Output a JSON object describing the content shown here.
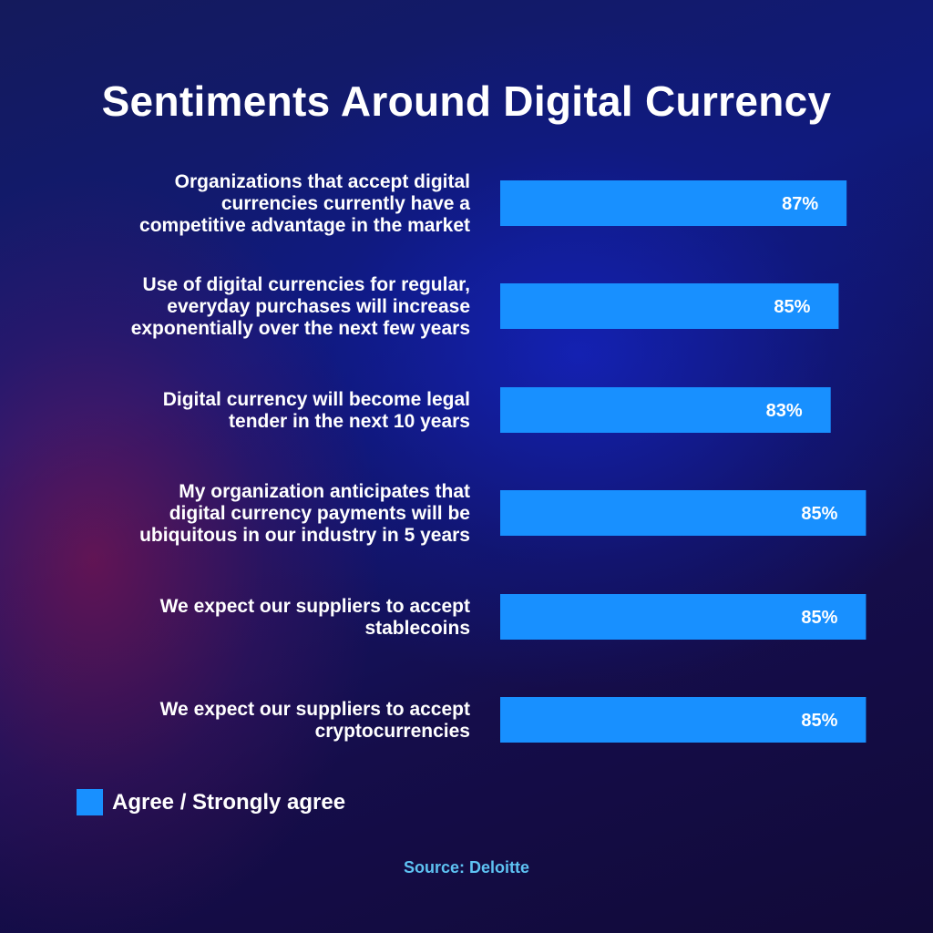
{
  "chart_data": {
    "type": "bar",
    "orientation": "horizontal",
    "title": "Sentiments Around Digital Currency",
    "categories": [
      [
        "Organizations that accept digital",
        "currencies currently have a",
        "competitive advantage in the market"
      ],
      [
        "Use of digital currencies for regular,",
        "everyday purchases will increase",
        "exponentially over the next few years"
      ],
      [
        "Digital currency will become legal",
        "tender in the next 10 years"
      ],
      [
        "My organization anticipates that",
        "digital currency payments will be",
        "ubiquitous in our industry in 5 years"
      ],
      [
        "We expect our suppliers to accept",
        "stablecoins"
      ],
      [
        "We expect our suppliers to accept",
        "cryptocurrencies"
      ]
    ],
    "series": [
      {
        "name": "Agree / Strongly agree",
        "values": [
          87,
          85,
          83,
          85,
          85,
          85
        ],
        "labels": [
          "87%",
          "85%",
          "83%",
          "85%",
          "85%",
          "85%"
        ]
      }
    ],
    "legend_position": "bottom-left",
    "bar_color": "#1890ff",
    "grid": false
  },
  "source": "Source: Deloitte",
  "colors": {
    "bar": "#1890ff",
    "text": "#ffffff",
    "source_text": "#5ec2f2"
  }
}
